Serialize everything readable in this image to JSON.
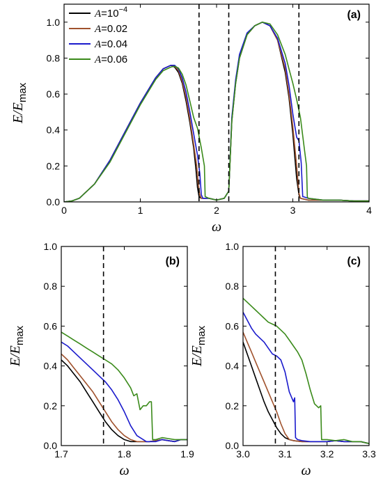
{
  "chart_data": [
    {
      "type": "line",
      "panel_label": "(a)",
      "xlabel": "ω",
      "ylabel": "E/Emax",
      "xlim": [
        0,
        4
      ],
      "ylim": [
        0,
        1.1
      ],
      "x_ticks": [
        "0",
        "1",
        "2",
        "3",
        "4"
      ],
      "y_ticks": [
        "0.0",
        "0.2",
        "0.4",
        "0.6",
        "0.8",
        "1.0"
      ],
      "x_tick_values": [
        0,
        1,
        2,
        3,
        4
      ],
      "y_tick_values": [
        0,
        0.2,
        0.4,
        0.6,
        0.8,
        1.0
      ],
      "vlines": [
        1.77,
        2.16,
        3.08
      ],
      "legend": [
        {
          "prefix": "A",
          "value": "=10",
          "sup": "−4",
          "color": "#000000"
        },
        {
          "prefix": "A",
          "value": "=0.02",
          "sup": "",
          "color": "#a0522d"
        },
        {
          "prefix": "A",
          "value": "=0.04",
          "sup": "",
          "color": "#1a1acc"
        },
        {
          "prefix": "A",
          "value": "=0.06",
          "sup": "",
          "color": "#3a8a1a"
        }
      ],
      "series": [
        {
          "color": "#000000",
          "x": [
            0,
            0.1,
            0.2,
            0.4,
            0.6,
            0.8,
            1.0,
            1.2,
            1.3,
            1.4,
            1.45,
            1.5,
            1.55,
            1.6,
            1.65,
            1.7,
            1.73,
            1.75,
            1.77,
            1.8,
            1.9,
            2.0,
            2.1,
            2.16,
            2.2,
            2.25,
            2.3,
            2.4,
            2.5,
            2.6,
            2.7,
            2.8,
            2.9,
            2.95,
            3.0,
            3.05,
            3.08,
            3.1,
            3.2,
            3.4,
            3.6,
            3.8,
            4.0
          ],
          "y": [
            0,
            0.005,
            0.02,
            0.1,
            0.23,
            0.39,
            0.55,
            0.69,
            0.74,
            0.76,
            0.75,
            0.72,
            0.66,
            0.56,
            0.44,
            0.3,
            0.18,
            0.08,
            0.03,
            0.02,
            0.02,
            0.01,
            0.02,
            0.06,
            0.45,
            0.66,
            0.8,
            0.93,
            0.98,
            1.0,
            0.98,
            0.9,
            0.72,
            0.58,
            0.38,
            0.13,
            0.04,
            0.02,
            0.01,
            0.01,
            0.01,
            0.005,
            0.005
          ]
        },
        {
          "color": "#a0522d",
          "x": [
            0,
            0.1,
            0.2,
            0.4,
            0.6,
            0.8,
            1.0,
            1.2,
            1.3,
            1.4,
            1.45,
            1.5,
            1.55,
            1.6,
            1.65,
            1.7,
            1.74,
            1.76,
            1.78,
            1.8,
            1.9,
            2.0,
            2.1,
            2.16,
            2.2,
            2.25,
            2.3,
            2.4,
            2.5,
            2.6,
            2.7,
            2.8,
            2.9,
            2.95,
            3.0,
            3.05,
            3.08,
            3.1,
            3.2,
            3.4,
            3.6,
            3.8,
            4.0
          ],
          "y": [
            0,
            0.005,
            0.02,
            0.1,
            0.23,
            0.39,
            0.55,
            0.69,
            0.74,
            0.76,
            0.755,
            0.73,
            0.67,
            0.58,
            0.46,
            0.32,
            0.2,
            0.1,
            0.04,
            0.02,
            0.02,
            0.01,
            0.02,
            0.06,
            0.46,
            0.67,
            0.81,
            0.93,
            0.98,
            1.0,
            0.98,
            0.9,
            0.74,
            0.6,
            0.42,
            0.2,
            0.05,
            0.02,
            0.01,
            0.01,
            0.01,
            0.005,
            0.005
          ]
        },
        {
          "color": "#1a1acc",
          "x": [
            0,
            0.1,
            0.2,
            0.4,
            0.6,
            0.8,
            1.0,
            1.2,
            1.3,
            1.4,
            1.45,
            1.5,
            1.55,
            1.6,
            1.65,
            1.7,
            1.75,
            1.78,
            1.8,
            1.82,
            1.9,
            2.0,
            2.1,
            2.16,
            2.2,
            2.25,
            2.3,
            2.4,
            2.5,
            2.6,
            2.7,
            2.8,
            2.9,
            2.95,
            3.0,
            3.05,
            3.08,
            3.11,
            3.13,
            3.2,
            3.4,
            3.6,
            3.8,
            4.0
          ],
          "y": [
            0,
            0.005,
            0.02,
            0.1,
            0.23,
            0.39,
            0.55,
            0.69,
            0.74,
            0.76,
            0.76,
            0.74,
            0.69,
            0.61,
            0.5,
            0.38,
            0.26,
            0.16,
            0.04,
            0.02,
            0.02,
            0.01,
            0.02,
            0.06,
            0.47,
            0.68,
            0.82,
            0.94,
            0.98,
            1.0,
            0.98,
            0.91,
            0.77,
            0.65,
            0.49,
            0.36,
            0.34,
            0.22,
            0.03,
            0.02,
            0.01,
            0.01,
            0.005,
            0.005
          ]
        },
        {
          "color": "#3a8a1a",
          "x": [
            0,
            0.1,
            0.2,
            0.4,
            0.6,
            0.8,
            1.0,
            1.2,
            1.3,
            1.4,
            1.45,
            1.5,
            1.55,
            1.6,
            1.65,
            1.7,
            1.75,
            1.8,
            1.82,
            1.84,
            1.85,
            1.9,
            2.0,
            2.1,
            2.16,
            2.2,
            2.25,
            2.3,
            2.4,
            2.5,
            2.6,
            2.7,
            2.8,
            2.9,
            2.95,
            3.0,
            3.05,
            3.1,
            3.15,
            3.18,
            3.19,
            3.2,
            3.4,
            3.6,
            3.8,
            4.0
          ],
          "y": [
            0,
            0.005,
            0.02,
            0.1,
            0.22,
            0.38,
            0.54,
            0.68,
            0.73,
            0.75,
            0.755,
            0.745,
            0.71,
            0.65,
            0.56,
            0.47,
            0.41,
            0.3,
            0.25,
            0.2,
            0.03,
            0.02,
            0.01,
            0.02,
            0.06,
            0.45,
            0.66,
            0.8,
            0.93,
            0.98,
            1.0,
            0.99,
            0.93,
            0.82,
            0.74,
            0.66,
            0.57,
            0.47,
            0.3,
            0.2,
            0.03,
            0.02,
            0.01,
            0.01,
            0.005,
            0.005
          ]
        }
      ]
    },
    {
      "type": "line",
      "panel_label": "(b)",
      "xlabel": "ω",
      "ylabel": "E/Emax",
      "xlim": [
        1.7,
        1.9
      ],
      "ylim": [
        0,
        1.0
      ],
      "x_ticks": [
        "1.7",
        "1.8",
        "1.9"
      ],
      "y_ticks": [
        "0.0",
        "0.2",
        "0.4",
        "0.6",
        "0.8",
        "1.0"
      ],
      "x_tick_values": [
        1.7,
        1.8,
        1.9
      ],
      "y_tick_values": [
        0,
        0.2,
        0.4,
        0.6,
        0.8,
        1.0
      ],
      "vlines": [
        1.767
      ],
      "series": [
        {
          "color": "#000000",
          "x": [
            1.7,
            1.71,
            1.72,
            1.73,
            1.74,
            1.75,
            1.76,
            1.77,
            1.78,
            1.79,
            1.8,
            1.81,
            1.82,
            1.83,
            1.84,
            1.85,
            1.86,
            1.87,
            1.88,
            1.89,
            1.9
          ],
          "y": [
            0.43,
            0.4,
            0.36,
            0.32,
            0.27,
            0.22,
            0.17,
            0.12,
            0.08,
            0.05,
            0.03,
            0.02,
            0.02,
            0.02,
            0.02,
            0.025,
            0.03,
            0.025,
            0.02,
            0.03,
            0.03
          ]
        },
        {
          "color": "#a0522d",
          "x": [
            1.7,
            1.71,
            1.72,
            1.73,
            1.74,
            1.75,
            1.76,
            1.77,
            1.78,
            1.79,
            1.8,
            1.81,
            1.82,
            1.83,
            1.84,
            1.85,
            1.86,
            1.87,
            1.88,
            1.89,
            1.9
          ],
          "y": [
            0.46,
            0.43,
            0.39,
            0.35,
            0.31,
            0.27,
            0.22,
            0.17,
            0.12,
            0.08,
            0.05,
            0.03,
            0.02,
            0.02,
            0.02,
            0.025,
            0.03,
            0.025,
            0.02,
            0.03,
            0.03
          ]
        },
        {
          "color": "#1a1acc",
          "x": [
            1.7,
            1.71,
            1.72,
            1.73,
            1.74,
            1.75,
            1.76,
            1.77,
            1.78,
            1.79,
            1.8,
            1.81,
            1.82,
            1.83,
            1.835,
            1.84,
            1.85,
            1.86,
            1.87,
            1.88,
            1.89,
            1.9
          ],
          "y": [
            0.52,
            0.5,
            0.47,
            0.44,
            0.41,
            0.38,
            0.35,
            0.32,
            0.28,
            0.23,
            0.17,
            0.1,
            0.05,
            0.03,
            0.02,
            0.02,
            0.02,
            0.03,
            0.025,
            0.02,
            0.03,
            0.03
          ]
        },
        {
          "color": "#3a8a1a",
          "x": [
            1.7,
            1.71,
            1.72,
            1.73,
            1.74,
            1.75,
            1.76,
            1.77,
            1.78,
            1.79,
            1.8,
            1.81,
            1.815,
            1.82,
            1.825,
            1.83,
            1.835,
            1.84,
            1.843,
            1.845,
            1.85,
            1.86,
            1.87,
            1.88,
            1.89,
            1.9
          ],
          "y": [
            0.57,
            0.55,
            0.53,
            0.51,
            0.49,
            0.47,
            0.45,
            0.43,
            0.41,
            0.38,
            0.34,
            0.29,
            0.25,
            0.26,
            0.18,
            0.2,
            0.2,
            0.22,
            0.22,
            0.03,
            0.03,
            0.04,
            0.035,
            0.03,
            0.03,
            0.03
          ]
        }
      ]
    },
    {
      "type": "line",
      "panel_label": "(c)",
      "xlabel": "ω",
      "ylabel": "E/Emax",
      "xlim": [
        3.0,
        3.3
      ],
      "ylim": [
        0,
        1.0
      ],
      "x_ticks": [
        "3.0",
        "3.1",
        "3.2",
        "3.3"
      ],
      "y_ticks": [
        "0.0",
        "0.2",
        "0.4",
        "0.6",
        "0.8",
        "1.0"
      ],
      "x_tick_values": [
        3.0,
        3.1,
        3.2,
        3.3
      ],
      "y_tick_values": [
        0,
        0.2,
        0.4,
        0.6,
        0.8,
        1.0
      ],
      "vlines": [
        3.077
      ],
      "series": [
        {
          "color": "#000000",
          "x": [
            3.0,
            3.01,
            3.02,
            3.03,
            3.04,
            3.05,
            3.06,
            3.07,
            3.08,
            3.09,
            3.1,
            3.11,
            3.12,
            3.14,
            3.16,
            3.18,
            3.2,
            3.22,
            3.24,
            3.26,
            3.28,
            3.3
          ],
          "y": [
            0.52,
            0.46,
            0.4,
            0.34,
            0.28,
            0.22,
            0.17,
            0.13,
            0.09,
            0.06,
            0.04,
            0.03,
            0.025,
            0.02,
            0.02,
            0.02,
            0.02,
            0.025,
            0.02,
            0.02,
            0.02,
            0.01
          ]
        },
        {
          "color": "#a0522d",
          "x": [
            3.0,
            3.01,
            3.02,
            3.03,
            3.04,
            3.05,
            3.06,
            3.07,
            3.08,
            3.09,
            3.1,
            3.11,
            3.12,
            3.14,
            3.16,
            3.18,
            3.2,
            3.22,
            3.24,
            3.26,
            3.28,
            3.3
          ],
          "y": [
            0.57,
            0.52,
            0.47,
            0.42,
            0.37,
            0.32,
            0.27,
            0.22,
            0.17,
            0.11,
            0.06,
            0.03,
            0.025,
            0.02,
            0.02,
            0.02,
            0.02,
            0.025,
            0.02,
            0.02,
            0.02,
            0.01
          ]
        },
        {
          "color": "#1a1acc",
          "x": [
            3.0,
            3.01,
            3.02,
            3.03,
            3.04,
            3.05,
            3.06,
            3.07,
            3.08,
            3.09,
            3.1,
            3.11,
            3.12,
            3.123,
            3.125,
            3.13,
            3.14,
            3.16,
            3.18,
            3.2,
            3.22,
            3.24,
            3.26,
            3.28,
            3.3
          ],
          "y": [
            0.67,
            0.63,
            0.59,
            0.56,
            0.54,
            0.52,
            0.49,
            0.46,
            0.45,
            0.43,
            0.37,
            0.27,
            0.22,
            0.24,
            0.04,
            0.03,
            0.025,
            0.02,
            0.02,
            0.02,
            0.025,
            0.02,
            0.02,
            0.02,
            0.01
          ]
        },
        {
          "color": "#3a8a1a",
          "x": [
            3.0,
            3.01,
            3.02,
            3.03,
            3.04,
            3.05,
            3.06,
            3.07,
            3.08,
            3.09,
            3.1,
            3.11,
            3.12,
            3.13,
            3.14,
            3.15,
            3.16,
            3.17,
            3.18,
            3.185,
            3.187,
            3.19,
            3.2,
            3.22,
            3.24,
            3.26,
            3.28,
            3.3
          ],
          "y": [
            0.74,
            0.72,
            0.7,
            0.68,
            0.66,
            0.64,
            0.62,
            0.61,
            0.6,
            0.58,
            0.56,
            0.53,
            0.5,
            0.47,
            0.43,
            0.36,
            0.28,
            0.21,
            0.19,
            0.2,
            0.03,
            0.03,
            0.03,
            0.025,
            0.03,
            0.02,
            0.02,
            0.01
          ]
        }
      ]
    }
  ]
}
